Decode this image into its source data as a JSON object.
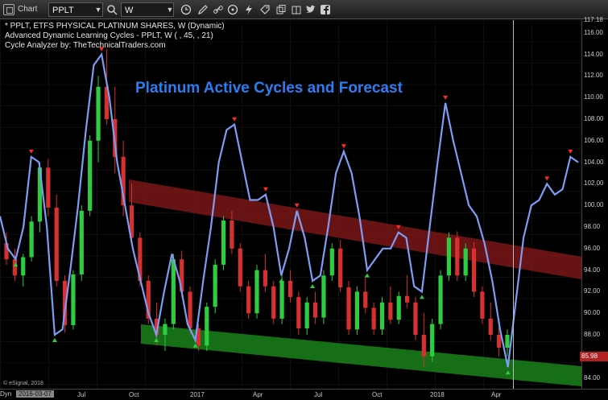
{
  "toolbar": {
    "app_title": "Chart",
    "symbol": "PPLT",
    "interval": "W",
    "tools": [
      "clock-icon",
      "pencil-icon",
      "link-icon",
      "circle-icon",
      "bolt-icon",
      "tag-icon",
      "copy-icon",
      "book-icon",
      "twitter-icon",
      "facebook-icon"
    ]
  },
  "legend": {
    "line1": "* PPLT, ETFS PHYSICAL PLATINUM SHARES, W (Dynamic)",
    "line2": "Advanced Dynamic Learning Cycles - PPLT, W (          , 45,          , 21)",
    "line3": "Cycle Analyzer by: TheTechnicalTraders.com"
  },
  "heading": "Platinum Active Cycles and Forecast",
  "price_axis": {
    "ticks": [
      "117.18",
      "116.00",
      "114.00",
      "112.00",
      "110.00",
      "108.00",
      "106.00",
      "104.00",
      "102.00",
      "100.00",
      "98.00",
      "96.00",
      "94.00",
      "92.00",
      "90.00",
      "88.00",
      "84.00"
    ],
    "last_price": "85.98",
    "last_price_color": "#b22222"
  },
  "date_axis": {
    "range_label": "Dyn",
    "start_date": "2016-03-07",
    "ticks": [
      "Jul",
      "Oct",
      "2017",
      "Apr",
      "Jul",
      "Oct",
      "2018",
      "Apr"
    ]
  },
  "copyright": "© eSignal, 2018",
  "colors": {
    "bull_candle": "#2ecc40",
    "bear_candle": "#d63030",
    "cycle_line": "#7f9cf5",
    "upper_channel": "#8b1a1a",
    "lower_channel": "#1b8a1b",
    "heading": "#2e7df0"
  },
  "chart_data": {
    "type": "line",
    "title": "Platinum Active Cycles and Forecast",
    "ylim": [
      83,
      117.18
    ],
    "x_range": [
      "2016-03-07",
      "2018-09-30"
    ],
    "cycle_series": {
      "name": "Advanced Dynamic Learning Cycles",
      "values": [
        99,
        96,
        95,
        98,
        104.5,
        104,
        98,
        88,
        88.5,
        94,
        100,
        107,
        113,
        114,
        110,
        104,
        100,
        96,
        93,
        90,
        88,
        92,
        95.5,
        93,
        89,
        87.5,
        93,
        98,
        104,
        107,
        107.5,
        104,
        100.5,
        100.5,
        101,
        98,
        93.5,
        96,
        99.5,
        97,
        93,
        93.5,
        98,
        103,
        105,
        103,
        99,
        94,
        95,
        96,
        96,
        97.5,
        97,
        92.5,
        92,
        98,
        104,
        109.5,
        106,
        103,
        100,
        99,
        96.5,
        93,
        88.5,
        85,
        91,
        97,
        100,
        100.5,
        102,
        101,
        101.5,
        104.5,
        104
      ]
    },
    "candles": [
      [
        96.5,
        97.5,
        94.5,
        95
      ],
      [
        95,
        96,
        93,
        93.5
      ],
      [
        93.5,
        95.5,
        92.5,
        95.2
      ],
      [
        95.2,
        99,
        94.8,
        98.5
      ],
      [
        98.5,
        104,
        97.5,
        103.5
      ],
      [
        103.5,
        104.3,
        99,
        99.8
      ],
      [
        99.8,
        101,
        92.5,
        93
      ],
      [
        93,
        93.5,
        88.2,
        88.9
      ],
      [
        88.9,
        94,
        88.5,
        93.6
      ],
      [
        93.6,
        100,
        93,
        99.5
      ],
      [
        99.5,
        106.5,
        99,
        106
      ],
      [
        106,
        112,
        104,
        111
      ],
      [
        111,
        114.5,
        107.5,
        108
      ],
      [
        108,
        111,
        103,
        104.5
      ],
      [
        104.5,
        106,
        99,
        100
      ],
      [
        100,
        102,
        96.5,
        97
      ],
      [
        97,
        97.5,
        92.5,
        93
      ],
      [
        93,
        93.5,
        89,
        89.5
      ],
      [
        89.5,
        91,
        87,
        88
      ],
      [
        88,
        89.5,
        86.5,
        89
      ],
      [
        89,
        95.5,
        88.5,
        95
      ],
      [
        95,
        95.8,
        91.5,
        92
      ],
      [
        92,
        92.5,
        88,
        88.6
      ],
      [
        88.6,
        89,
        86.5,
        87
      ],
      [
        87,
        91,
        86.5,
        90.6
      ],
      [
        90.6,
        95,
        90,
        94.5
      ],
      [
        94.5,
        99,
        94,
        98.6
      ],
      [
        98.6,
        99.5,
        95.5,
        96
      ],
      [
        96,
        96.5,
        92,
        92.5
      ],
      [
        92.5,
        93,
        89.5,
        90
      ],
      [
        90,
        94.5,
        89.5,
        94
      ],
      [
        94,
        95.5,
        92,
        92.5
      ],
      [
        92.5,
        93,
        89,
        89.5
      ],
      [
        89.5,
        93.5,
        89,
        93
      ],
      [
        93,
        94,
        91,
        91.5
      ],
      [
        91.5,
        92,
        88,
        88.6
      ],
      [
        88.6,
        91.5,
        88,
        91
      ],
      [
        91,
        92,
        89,
        89.6
      ],
      [
        89.6,
        94,
        89,
        93.5
      ],
      [
        93.5,
        96.5,
        93,
        96
      ],
      [
        96,
        96.8,
        92,
        92.4
      ],
      [
        92.4,
        93,
        88,
        88.5
      ],
      [
        88.5,
        92.5,
        88,
        92
      ],
      [
        92,
        93.5,
        90,
        90.5
      ],
      [
        90.5,
        91,
        88,
        88.5
      ],
      [
        88.5,
        91.5,
        88,
        91
      ],
      [
        91,
        92.5,
        89,
        89.4
      ],
      [
        89.4,
        92,
        89,
        91.6
      ],
      [
        91.6,
        93.5,
        90.5,
        91
      ],
      [
        91,
        91.5,
        87.5,
        88
      ],
      [
        88,
        90,
        85,
        86
      ],
      [
        86,
        89.5,
        85.5,
        89
      ],
      [
        89,
        94,
        88.5,
        93.5
      ],
      [
        93.5,
        97.5,
        93,
        97
      ],
      [
        97,
        97.6,
        93,
        93.5
      ],
      [
        93.5,
        96.5,
        93,
        96
      ],
      [
        96,
        96.6,
        91.5,
        92
      ],
      [
        92,
        92.5,
        89,
        89.5
      ],
      [
        89.5,
        91,
        87.5,
        88
      ],
      [
        88,
        89,
        86,
        86.8
      ],
      [
        86.8,
        88.5,
        86,
        88
      ]
    ]
  }
}
